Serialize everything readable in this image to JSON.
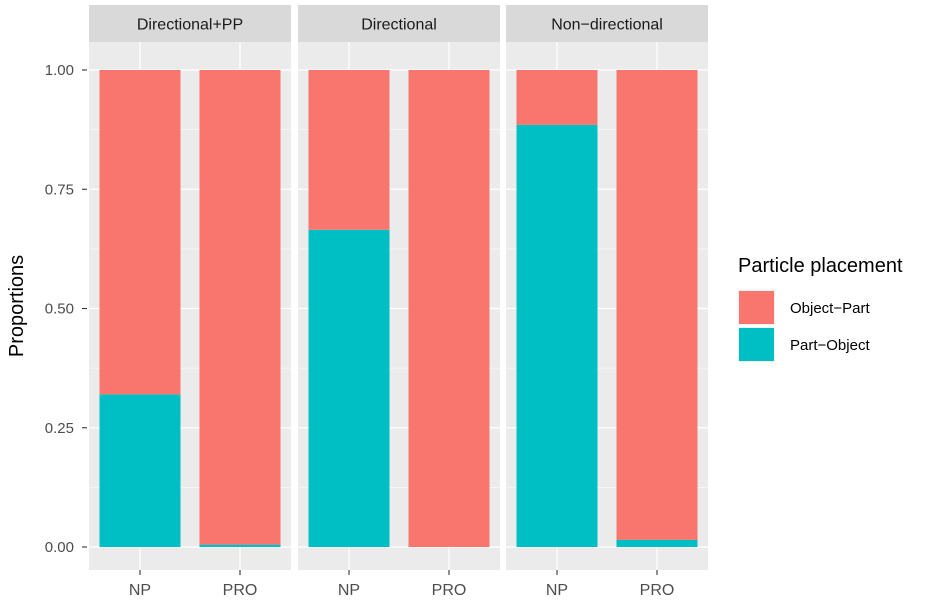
{
  "chart_data": {
    "type": "bar",
    "stacked": true,
    "ylabel": "Proportions",
    "xlabel": "",
    "ylim": [
      0,
      1
    ],
    "yticks": [
      0.0,
      0.25,
      0.5,
      0.75,
      1.0
    ],
    "ytick_labels": [
      "0.00",
      "0.25",
      "0.50",
      "0.75",
      "1.00"
    ],
    "grid": true,
    "legend": {
      "title": "Particle placement",
      "position": "right",
      "entries": [
        {
          "name": "Object−Part",
          "color": "#F8766D"
        },
        {
          "name": "Part−Object",
          "color": "#00BFC4"
        }
      ]
    },
    "categories": [
      "NP",
      "PRO"
    ],
    "panels": [
      {
        "title": "Directional+PP",
        "series": [
          {
            "name": "Part−Object",
            "values": [
              0.32,
              0.005
            ]
          },
          {
            "name": "Object−Part",
            "values": [
              0.68,
              0.995
            ]
          }
        ]
      },
      {
        "title": "Directional",
        "series": [
          {
            "name": "Part−Object",
            "values": [
              0.665,
              0.0
            ]
          },
          {
            "name": "Object−Part",
            "values": [
              0.335,
              1.0
            ]
          }
        ]
      },
      {
        "title": "Non−directional",
        "series": [
          {
            "name": "Part−Object",
            "values": [
              0.885,
              0.015
            ]
          },
          {
            "name": "Object−Part",
            "values": [
              0.115,
              0.985
            ]
          }
        ]
      }
    ]
  }
}
